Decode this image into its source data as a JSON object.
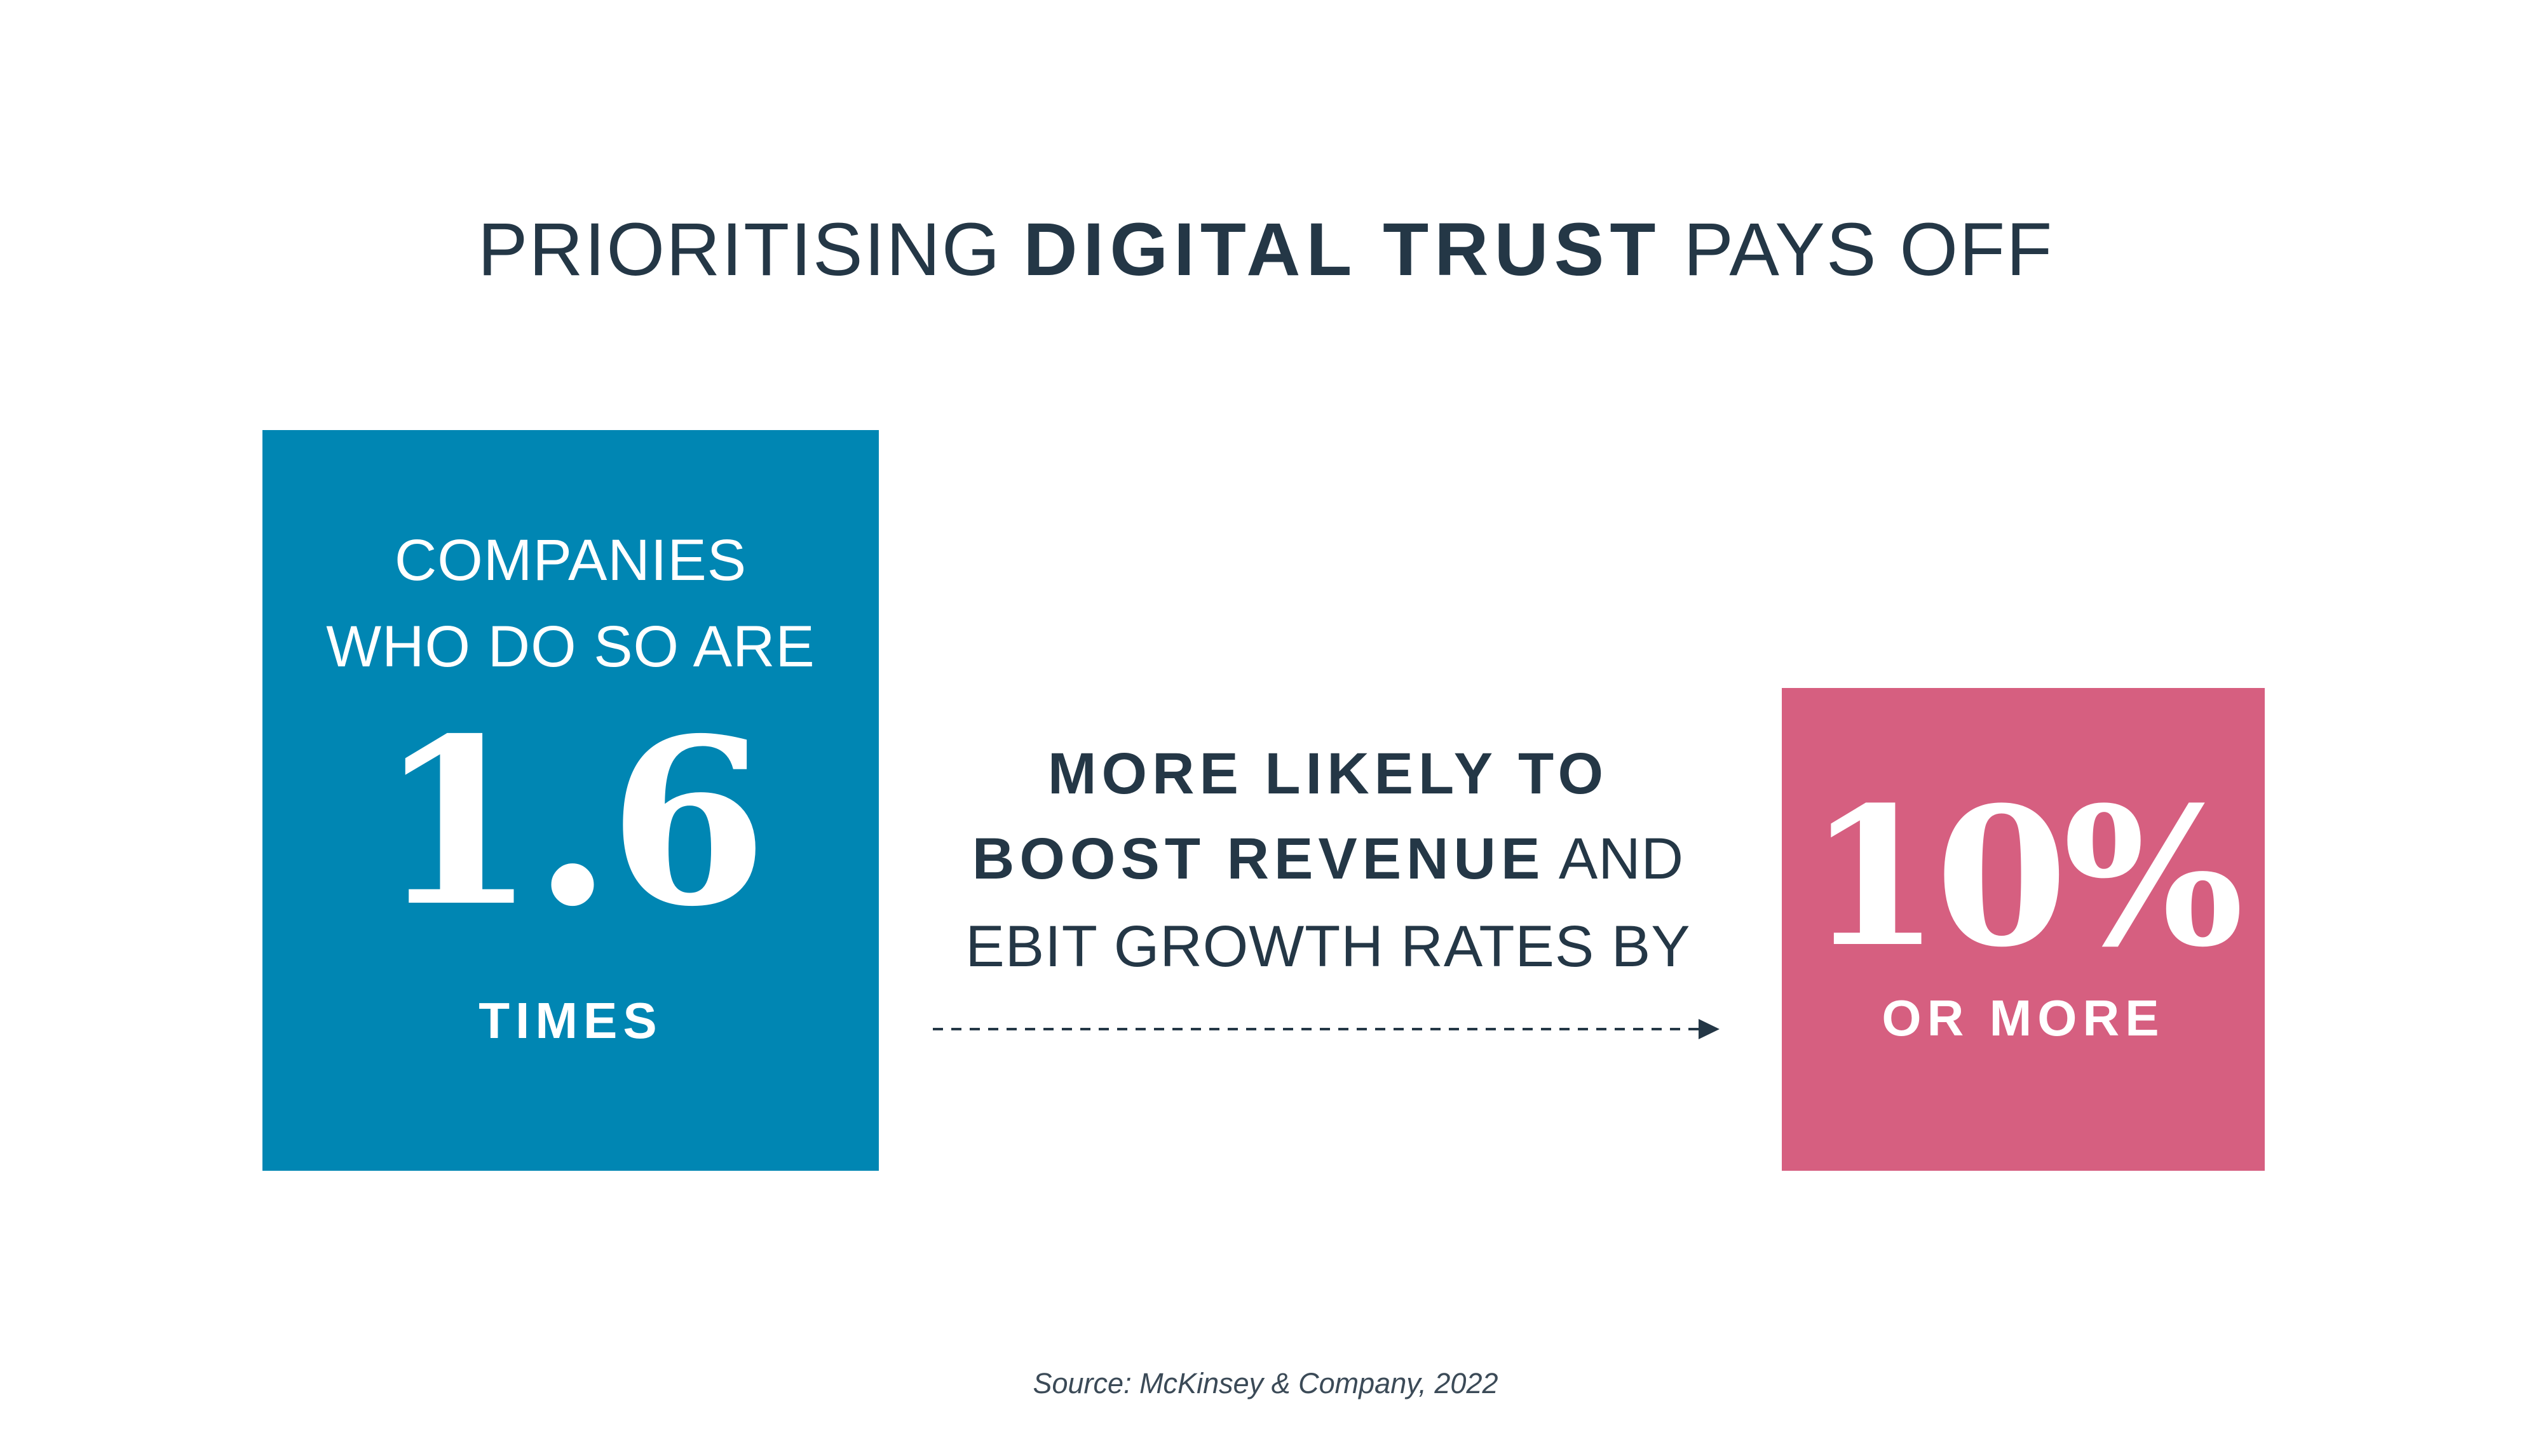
{
  "title": {
    "prefix": "PRIORITISING ",
    "emphasis": "DIGITAL TRUST",
    "suffix": " PAYS OFF"
  },
  "left_stat": {
    "line1": "COMPANIES",
    "line2": "WHO DO SO ARE",
    "value": "1.6",
    "unit": "TIMES"
  },
  "middle_text": {
    "line1": "MORE LIKELY TO",
    "line2_bold": "BOOST REVENUE",
    "line2_rest": " AND",
    "line3": "EBIT GROWTH RATES BY"
  },
  "right_stat": {
    "value": "10%",
    "unit": "OR MORE"
  },
  "source": "Source: McKinsey & Company, 2022",
  "colors": {
    "text": "#243746",
    "blue_box": "#0086b3",
    "pink_box": "#d65f80",
    "background": "#ffffff"
  },
  "icons": {
    "connector": "dashed-arrow-right"
  }
}
